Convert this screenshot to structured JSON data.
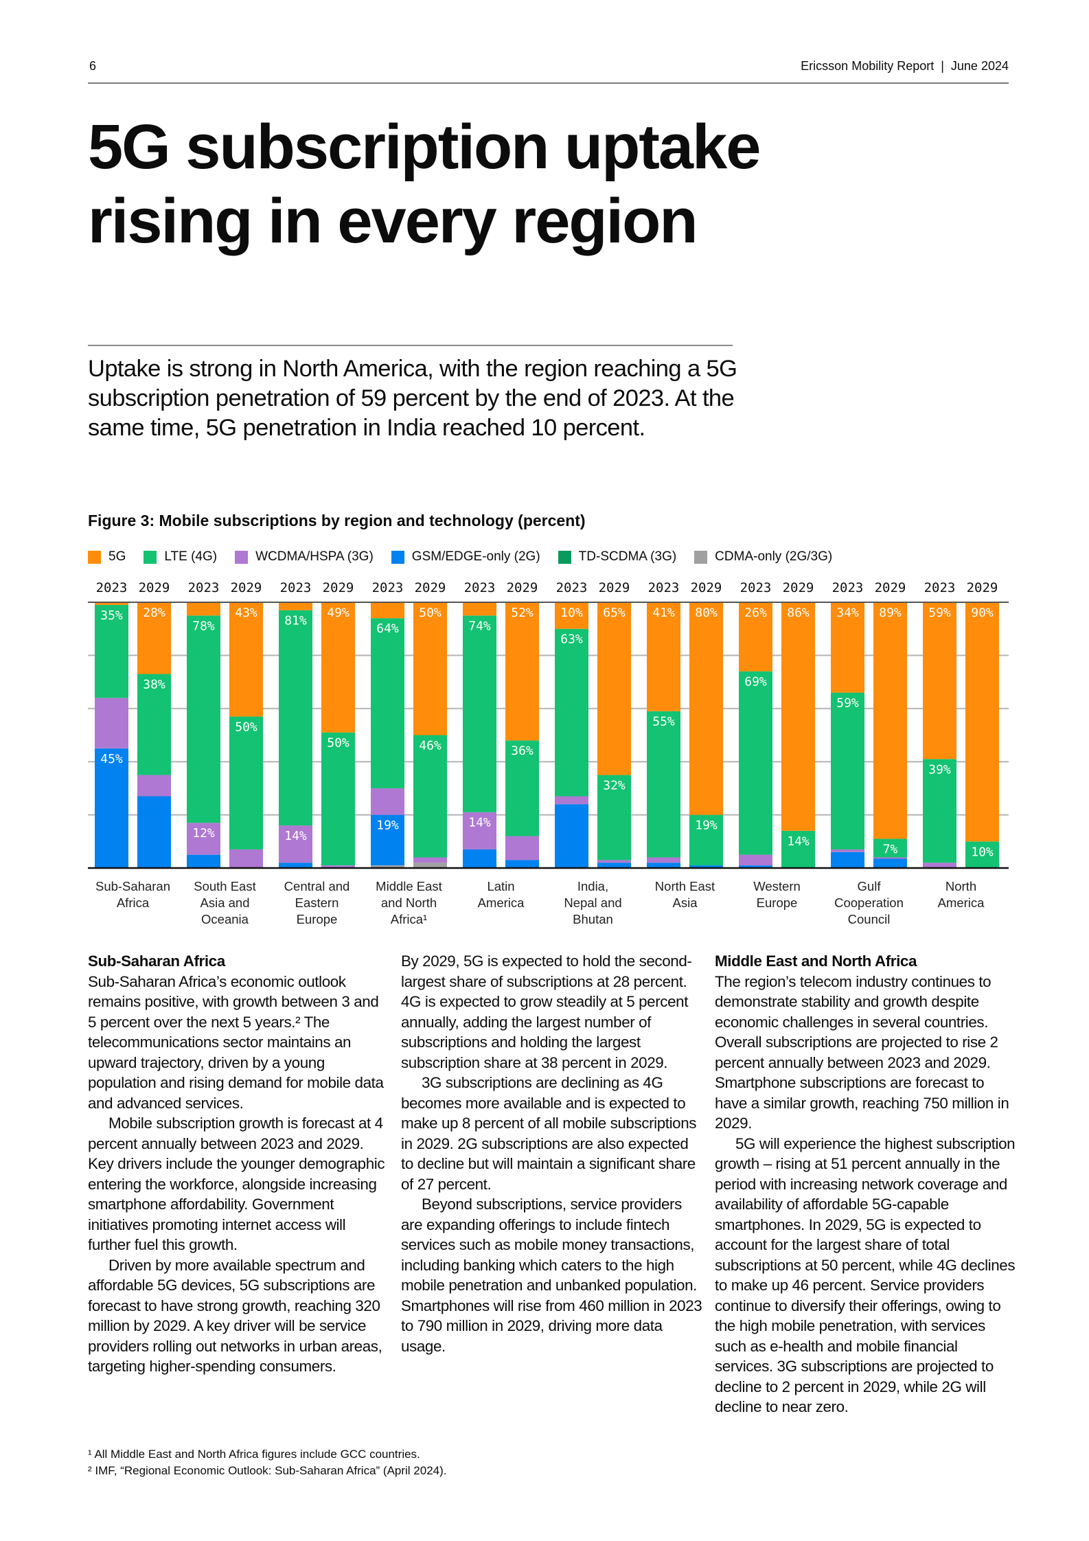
{
  "header": {
    "page_number": "6",
    "report": "Ericsson Mobility Report  |  June 2024"
  },
  "title_lines": [
    "5G subscription uptake",
    "rising in every region"
  ],
  "intro": "Uptake is strong in North America, with the region reaching a 5G subscription penetration of 59 percent by the end of 2023. At the same time, 5G penetration in India reached 10 percent.",
  "chart_data": {
    "type": "bar",
    "stacked": true,
    "title": "Figure 3: Mobile subscriptions by region and technology (percent)",
    "legend_placement": "top",
    "ylim": [
      0,
      100
    ],
    "grid": true,
    "years": [
      "2023",
      "2029"
    ],
    "series": [
      {
        "name": "5G",
        "color": "#FF8C0A"
      },
      {
        "name": "LTE (4G)",
        "color": "#13C272"
      },
      {
        "name": "WCDMA/HSPA (3G)",
        "color": "#AF78D2"
      },
      {
        "name": "GSM/EDGE-only (2G)",
        "color": "#0082F0"
      },
      {
        "name": "TD-SCDMA (3G)",
        "color": "#0A9B5C"
      },
      {
        "name": "CDMA-only (2G/3G)",
        "color": "#A0A0A0"
      }
    ],
    "stack_order_bottom_to_top": [
      "CDMA-only (2G/3G)",
      "TD-SCDMA (3G)",
      "GSM/EDGE-only (2G)",
      "WCDMA/HSPA (3G)",
      "LTE (4G)",
      "5G"
    ],
    "categories": [
      {
        "label": [
          "Sub-Saharan",
          "Africa"
        ],
        "bars": [
          {
            "year": "2023",
            "values": [
              1,
              35,
              19,
              45,
              0,
              0
            ],
            "labeled": [
              1,
              3
            ]
          },
          {
            "year": "2029",
            "values": [
              28,
              38,
              8,
              27,
              0,
              0
            ],
            "labeled": [
              0,
              1
            ]
          }
        ]
      },
      {
        "label": [
          "South East",
          "Asia and",
          "Oceania"
        ],
        "bars": [
          {
            "year": "2023",
            "values": [
              5,
              78,
              12,
              5,
              0,
              0
            ],
            "labeled": [
              1,
              2
            ]
          },
          {
            "year": "2029",
            "values": [
              43,
              50,
              7,
              0,
              0,
              0
            ],
            "labeled": [
              0,
              1
            ]
          }
        ]
      },
      {
        "label": [
          "Central and",
          "Eastern",
          "Europe"
        ],
        "bars": [
          {
            "year": "2023",
            "values": [
              3,
              81,
              14,
              2,
              0,
              0
            ],
            "labeled": [
              1,
              2
            ]
          },
          {
            "year": "2029",
            "values": [
              49,
              50,
              1,
              0,
              0,
              0
            ],
            "labeled": [
              0,
              1
            ]
          }
        ]
      },
      {
        "label": [
          "Middle East",
          "and North",
          "Africa¹"
        ],
        "bars": [
          {
            "year": "2023",
            "values": [
              6,
              64,
              10,
              19,
              0,
              1
            ],
            "labeled": [
              1,
              3
            ]
          },
          {
            "year": "2029",
            "values": [
              50,
              46,
              2,
              0,
              0,
              2
            ],
            "labeled": [
              0,
              1
            ]
          }
        ]
      },
      {
        "label": [
          "Latin",
          "America"
        ],
        "bars": [
          {
            "year": "2023",
            "values": [
              5,
              74,
              14,
              7,
              0,
              0
            ],
            "labeled": [
              1,
              2
            ]
          },
          {
            "year": "2029",
            "values": [
              52,
              36,
              9,
              3,
              0,
              0
            ],
            "labeled": [
              0,
              1
            ]
          }
        ]
      },
      {
        "label": [
          "India,",
          "Nepal and",
          "Bhutan"
        ],
        "bars": [
          {
            "year": "2023",
            "values": [
              10,
              63,
              3,
              24,
              0,
              0
            ],
            "labeled": [
              0,
              1
            ]
          },
          {
            "year": "2029",
            "values": [
              65,
              32,
              1,
              2,
              0,
              0
            ],
            "labeled": [
              0,
              1
            ]
          }
        ]
      },
      {
        "label": [
          "North East",
          "Asia"
        ],
        "bars": [
          {
            "year": "2023",
            "values": [
              41,
              55,
              2,
              2,
              0,
              0
            ],
            "labeled": [
              0,
              1
            ]
          },
          {
            "year": "2029",
            "values": [
              80,
              19,
              0,
              1,
              0,
              0
            ],
            "labeled": [
              0,
              1
            ]
          }
        ]
      },
      {
        "label": [
          "Western",
          "Europe"
        ],
        "bars": [
          {
            "year": "2023",
            "values": [
              26,
              69,
              4,
              1,
              0,
              0
            ],
            "labeled": [
              0,
              1
            ]
          },
          {
            "year": "2029",
            "values": [
              86,
              14,
              0,
              0,
              0,
              0
            ],
            "labeled": [
              0,
              1
            ]
          }
        ]
      },
      {
        "label": [
          "Gulf",
          "Cooperation",
          "Council"
        ],
        "bars": [
          {
            "year": "2023",
            "values": [
              34,
              59,
              1,
              6,
              0,
              0
            ],
            "labeled": [
              0,
              1
            ]
          },
          {
            "year": "2029",
            "values": [
              89,
              7,
              0.5,
              3.5,
              0,
              0
            ],
            "labeled": [
              0,
              1
            ]
          }
        ]
      },
      {
        "label": [
          "North",
          "America"
        ],
        "bars": [
          {
            "year": "2023",
            "values": [
              59,
              39,
              2,
              0,
              0,
              0
            ],
            "labeled": [
              0,
              1
            ]
          },
          {
            "year": "2029",
            "values": [
              90,
              10,
              0,
              0,
              0,
              0
            ],
            "labeled": [
              0,
              1
            ]
          }
        ]
      }
    ]
  },
  "columns": [
    {
      "heading": "Sub-Saharan Africa",
      "paragraphs": [
        "Sub-Saharan Africa’s economic outlook remains positive, with growth between 3 and 5 percent over the next 5 years.² The telecommunications sector maintains an upward trajectory, driven by a young population and rising demand for mobile data and advanced services.",
        "Mobile subscription growth is forecast at 4 percent annually between 2023 and 2029. Key drivers include the younger demographic entering the workforce, alongside increasing smartphone affordability. Government initiatives promoting internet access will further fuel this growth.",
        "Driven by more available spectrum and affordable 5G devices, 5G subscriptions are forecast to have strong growth, reaching 320 million by 2029. A key driver will be service providers rolling out networks in urban areas, targeting higher-spending consumers."
      ]
    },
    {
      "heading": "",
      "paragraphs": [
        "By 2029, 5G is expected to hold the second-largest share of subscriptions at 28 percent. 4G is expected to grow steadily at 5 percent annually, adding the largest number of subscriptions and holding the largest subscription share at 38 percent in 2029.",
        "3G subscriptions are declining as 4G becomes more available and is expected to make up 8 percent of all mobile subscriptions in 2029. 2G subscriptions are also expected to decline but will maintain a significant share of 27 percent.",
        "Beyond subscriptions, service providers are expanding offerings to include fintech services such as mobile money transactions, including banking which caters to the high mobile penetration and unbanked population. Smartphones will rise from 460 million in 2023 to 790 million in 2029, driving more data usage."
      ]
    },
    {
      "heading": "Middle East and North Africa",
      "paragraphs": [
        "The region’s telecom industry continues to demonstrate stability and growth despite economic challenges in several countries. Overall subscriptions are projected to rise 2 percent annually between 2023 and 2029. Smartphone subscriptions are forecast to have a similar growth, reaching 750 million in 2029.",
        "5G will experience the highest subscription growth – rising at 51 percent annually in the period with increasing network coverage and availability of affordable 5G-capable smartphones. In 2029, 5G is expected to account for the largest share of total subscriptions at 50 percent, while 4G declines to make up 46 percent. Service providers continue to diversify their offerings, owing to the high mobile penetration, with services such as e-health and mobile financial services. 3G subscriptions are projected to decline to 2 percent in 2029, while 2G will decline to near zero."
      ]
    }
  ],
  "footnotes": [
    "¹ All Middle East and North Africa figures include GCC countries.",
    "² IMF, “Regional Economic Outlook: Sub-Saharan Africa” (April 2024)."
  ]
}
